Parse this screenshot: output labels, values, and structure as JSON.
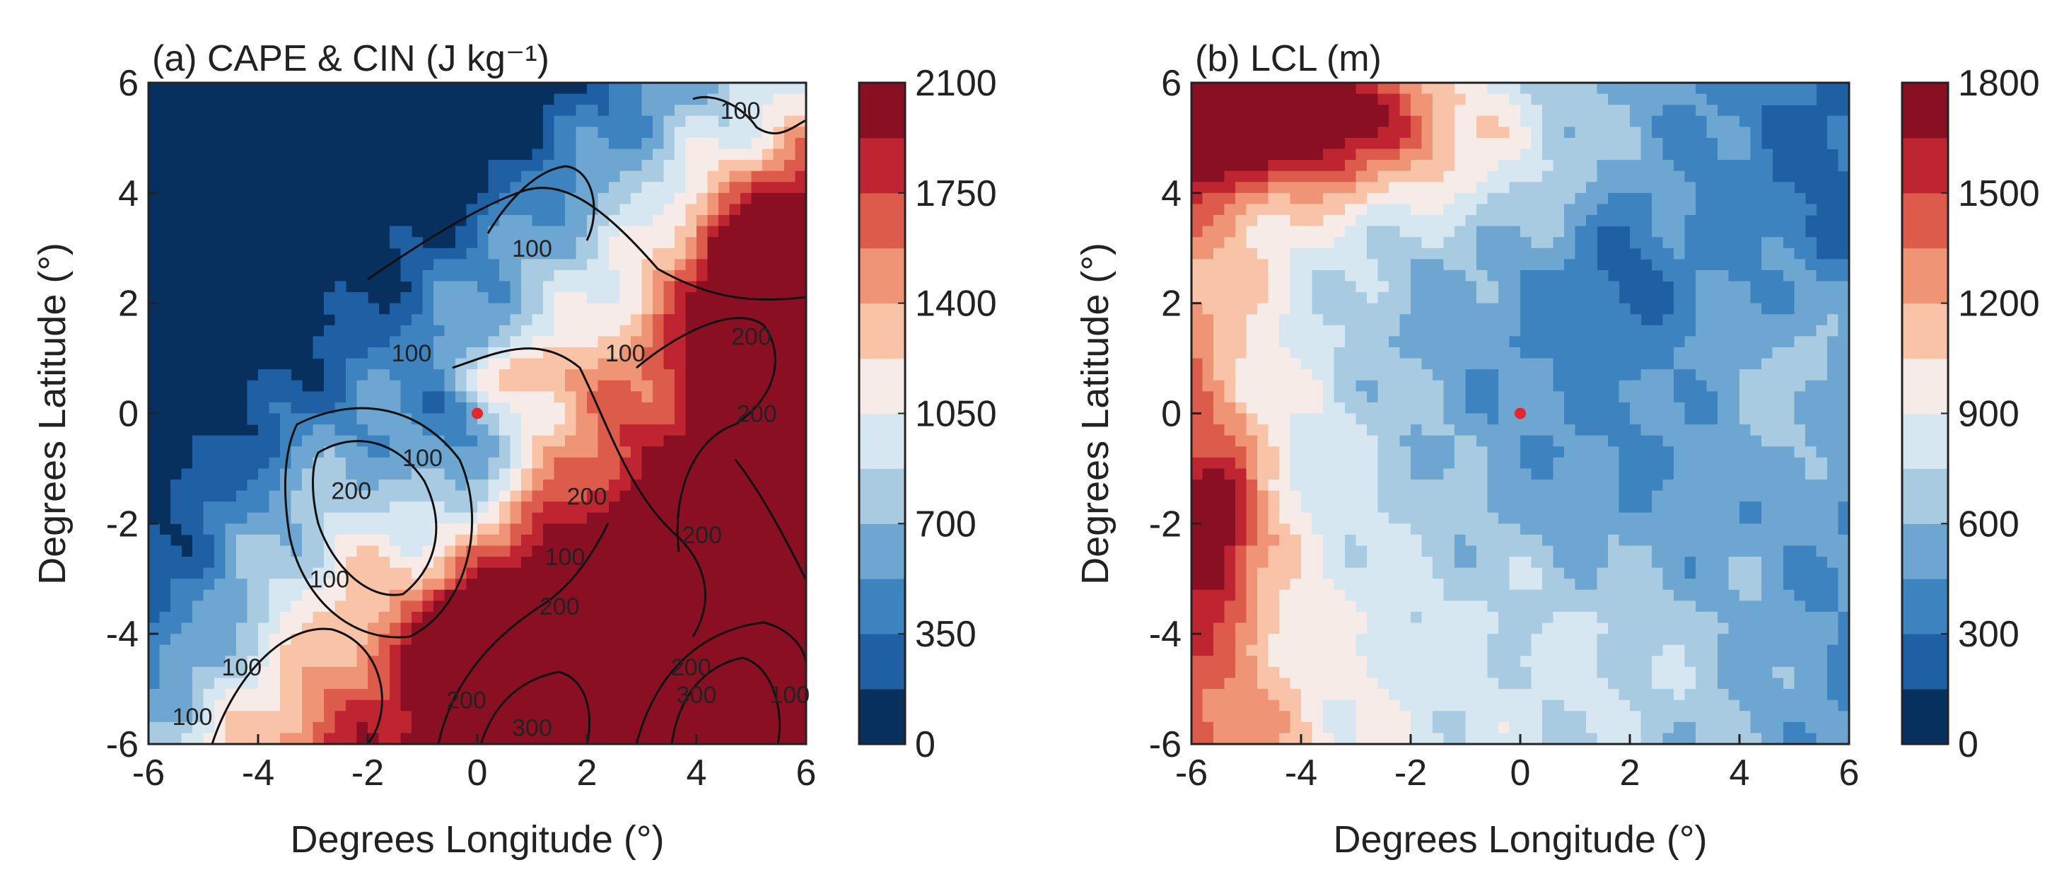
{
  "colors": {
    "scale": [
      "#08305f",
      "#1f5fa3",
      "#3d83bf",
      "#6ea6d2",
      "#a8cbe2",
      "#d7e7f1",
      "#f6ebe6",
      "#f8c3a6",
      "#ef9474",
      "#dc5b4b",
      "#bf2530",
      "#8a0f22"
    ],
    "marker": "#e8262a",
    "contour": "#111111"
  },
  "chart_data": [
    {
      "type": "heatmap",
      "title": "(a) CAPE & CIN (J kg⁻¹)",
      "xlabel": "Degrees Longitude (°)",
      "ylabel": "Degrees Latitude (°)",
      "xlim": [
        -6,
        6
      ],
      "ylim": [
        -6,
        6
      ],
      "x_ticks": [
        "-6",
        "-4",
        "-2",
        "0",
        "2",
        "4",
        "6"
      ],
      "y_ticks": [
        "-6",
        "-4",
        "-2",
        "0",
        "2",
        "4",
        "6"
      ],
      "colorbar": {
        "range": [
          0,
          2100
        ],
        "levels": 12,
        "ticks": [
          "0",
          "350",
          "700",
          "1050",
          "1400",
          "1750",
          "2100"
        ]
      },
      "field_name": "CAPE",
      "overlay": "CIN contours (J kg⁻¹)",
      "contour_labels": [
        {
          "text": "100",
          "x": 1.0,
          "y": 3.0
        },
        {
          "text": "100",
          "x": -1.2,
          "y": 1.1
        },
        {
          "text": "100",
          "x": 2.7,
          "y": 1.1
        },
        {
          "text": "100",
          "x": 4.8,
          "y": 5.5
        },
        {
          "text": "100",
          "x": -1.0,
          "y": -0.8
        },
        {
          "text": "100",
          "x": 1.6,
          "y": -2.6
        },
        {
          "text": "100",
          "x": -2.7,
          "y": -3.0
        },
        {
          "text": "100",
          "x": -4.3,
          "y": -4.6
        },
        {
          "text": "100",
          "x": -5.2,
          "y": -5.5
        },
        {
          "text": "100",
          "x": 5.7,
          "y": -5.1
        },
        {
          "text": "200",
          "x": -2.3,
          "y": -1.4
        },
        {
          "text": "200",
          "x": 2.0,
          "y": -1.5
        },
        {
          "text": "200",
          "x": 5.0,
          "y": 1.4
        },
        {
          "text": "200",
          "x": 5.1,
          "y": 0.0
        },
        {
          "text": "200",
          "x": 4.1,
          "y": -2.2
        },
        {
          "text": "200",
          "x": 1.5,
          "y": -3.5
        },
        {
          "text": "200",
          "x": 3.9,
          "y": -4.6
        },
        {
          "text": "200",
          "x": -0.2,
          "y": -5.2
        },
        {
          "text": "300",
          "x": 1.0,
          "y": -5.7
        },
        {
          "text": "300",
          "x": 4.0,
          "y": -5.1
        }
      ],
      "marker": {
        "x": 0,
        "y": 0
      }
    },
    {
      "type": "heatmap",
      "title": "(b) LCL (m)",
      "xlabel": "Degrees Longitude (°)",
      "ylabel": "Degrees Latitude (°)",
      "xlim": [
        -6,
        6
      ],
      "ylim": [
        -6,
        6
      ],
      "x_ticks": [
        "-6",
        "-4",
        "-2",
        "0",
        "2",
        "4",
        "6"
      ],
      "y_ticks": [
        "-6",
        "-4",
        "-2",
        "0",
        "2",
        "4",
        "6"
      ],
      "colorbar": {
        "range": [
          0,
          1800
        ],
        "levels": 12,
        "ticks": [
          "0",
          "300",
          "600",
          "900",
          "1200",
          "1500",
          "1800"
        ]
      },
      "field_name": "LCL",
      "marker": {
        "x": 0,
        "y": 0
      }
    }
  ]
}
